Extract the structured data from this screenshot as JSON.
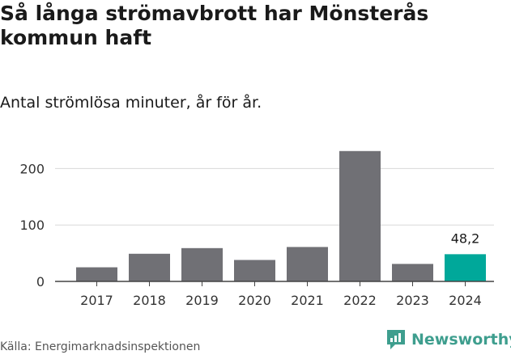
{
  "title": "Så långa strömavbrott har Mönsterås kommun haft",
  "subtitle": "Antal strömlösa minuter, år för år.",
  "source": "Källa: Energimarknadsinspektionen",
  "brand": "Newsworthy",
  "colors": {
    "bar": "#707075",
    "highlight": "#00a89a",
    "grid": "#d8d8d8",
    "axis": "#444444"
  },
  "chart_data": {
    "type": "bar",
    "title": "Så långa strömavbrott har Mönsterås kommun haft",
    "subtitle": "Antal strömlösa minuter, år för år.",
    "xlabel": "",
    "ylabel": "",
    "categories": [
      "2017",
      "2018",
      "2019",
      "2020",
      "2021",
      "2022",
      "2023",
      "2024"
    ],
    "values": [
      25,
      49,
      59,
      38,
      61,
      231,
      31,
      48.2
    ],
    "highlight_index": 7,
    "annotations": [
      {
        "category": "2024",
        "text": "48,2"
      }
    ],
    "yticks": [
      0,
      100,
      200
    ],
    "ylim": [
      0,
      235
    ],
    "grid": true
  }
}
